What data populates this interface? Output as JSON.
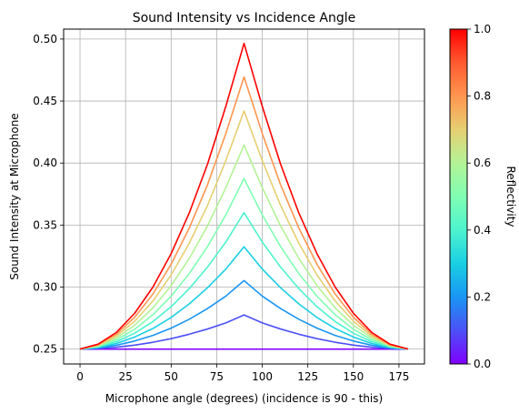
{
  "chart_data": {
    "type": "line",
    "title": "Sound Intensity vs Incidence Angle",
    "xlabel": "Microphone angle (degrees) (incidence is 90 - this)",
    "ylabel": "Sound Intensity at Microphone",
    "xlim": [
      -9,
      189
    ],
    "ylim": [
      0.238,
      0.508
    ],
    "x_ticks": [
      0,
      25,
      50,
      75,
      100,
      125,
      150,
      175
    ],
    "y_ticks": [
      0.25,
      0.3,
      0.35,
      0.4,
      0.45,
      0.5
    ],
    "y_tick_labels": [
      "0.25",
      "0.30",
      "0.35",
      "0.40",
      "0.45",
      "0.50"
    ],
    "grid": true,
    "x": [
      0,
      10,
      20,
      30,
      40,
      50,
      60,
      70,
      80,
      90,
      100,
      110,
      120,
      130,
      140,
      150,
      160,
      170,
      180
    ],
    "series": [
      {
        "reflectivity": 0.0,
        "color": "#8000ff",
        "values": [
          0.25,
          0.25,
          0.25,
          0.25,
          0.25,
          0.25,
          0.25,
          0.25,
          0.25,
          0.25,
          0.25,
          0.25,
          0.25,
          0.25,
          0.25,
          0.25,
          0.25,
          0.25,
          0.25
        ]
      },
      {
        "reflectivity": 0.111,
        "color": "#4c50f6",
        "values": [
          0.25,
          0.2505,
          0.2515,
          0.2532,
          0.2555,
          0.2584,
          0.262,
          0.2662,
          0.2711,
          0.2775,
          0.2711,
          0.2662,
          0.262,
          0.2584,
          0.2555,
          0.2532,
          0.2515,
          0.2505,
          0.25
        ]
      },
      {
        "reflectivity": 0.222,
        "color": "#1996f3",
        "values": [
          0.25,
          0.2509,
          0.2531,
          0.2565,
          0.261,
          0.2669,
          0.2741,
          0.2827,
          0.2927,
          0.3052,
          0.2927,
          0.2827,
          0.2741,
          0.2669,
          0.261,
          0.2565,
          0.2531,
          0.2509,
          0.25
        ]
      },
      {
        "reflectivity": 0.333,
        "color": "#1acfe3",
        "values": [
          0.25,
          0.2513,
          0.2545,
          0.2597,
          0.2666,
          0.2755,
          0.2865,
          0.2995,
          0.3145,
          0.3325,
          0.3145,
          0.2995,
          0.2865,
          0.2755,
          0.2666,
          0.2597,
          0.2545,
          0.2513,
          0.25
        ]
      },
      {
        "reflectivity": 0.444,
        "color": "#4df3ce",
        "values": [
          0.25,
          0.2518,
          0.256,
          0.2628,
          0.2722,
          0.2842,
          0.2988,
          0.3162,
          0.3363,
          0.36,
          0.3363,
          0.3162,
          0.2988,
          0.2842,
          0.2722,
          0.2628,
          0.256,
          0.2518,
          0.25
        ]
      },
      {
        "reflectivity": 0.556,
        "color": "#80feb3",
        "values": [
          0.25,
          0.2522,
          0.2575,
          0.266,
          0.2777,
          0.2927,
          0.311,
          0.3328,
          0.3582,
          0.3875,
          0.3582,
          0.3328,
          0.311,
          0.2927,
          0.2777,
          0.266,
          0.2575,
          0.2522,
          0.25
        ]
      },
      {
        "reflectivity": 0.667,
        "color": "#b3f396",
        "values": [
          0.25,
          0.2527,
          0.259,
          0.2692,
          0.2832,
          0.3012,
          0.3232,
          0.3495,
          0.3801,
          0.4145,
          0.3801,
          0.3495,
          0.3232,
          0.3012,
          0.2832,
          0.2692,
          0.259,
          0.2527,
          0.25
        ]
      },
      {
        "reflectivity": 0.778,
        "color": "#e6cf72",
        "values": [
          0.25,
          0.2531,
          0.2605,
          0.2725,
          0.2888,
          0.3098,
          0.3355,
          0.366,
          0.402,
          0.442,
          0.402,
          0.366,
          0.3355,
          0.3098,
          0.2888,
          0.2725,
          0.2605,
          0.2531,
          0.25
        ]
      },
      {
        "reflectivity": 0.889,
        "color": "#ff964f",
        "values": [
          0.25,
          0.2536,
          0.262,
          0.2757,
          0.2944,
          0.3184,
          0.3478,
          0.3827,
          0.4238,
          0.4695,
          0.4238,
          0.3827,
          0.3478,
          0.3184,
          0.2944,
          0.2757,
          0.262,
          0.2536,
          0.25
        ]
      },
      {
        "reflectivity": 1.0,
        "color": "#ff0000",
        "values": [
          0.25,
          0.254,
          0.2635,
          0.2789,
          0.3,
          0.327,
          0.36,
          0.3993,
          0.4457,
          0.4965,
          0.4457,
          0.3993,
          0.36,
          0.327,
          0.3,
          0.2789,
          0.2635,
          0.254,
          0.25
        ]
      }
    ],
    "colorbar": {
      "label": "Reflectivity",
      "range": [
        0.0,
        1.0
      ],
      "ticks": [
        0.0,
        0.2,
        0.4,
        0.6,
        0.8,
        1.0
      ],
      "tick_labels": [
        "0.0",
        "0.2",
        "0.4",
        "0.6",
        "0.8",
        "1.0"
      ],
      "colormap": "rainbow",
      "colormap_stops": [
        "#8000ff",
        "#4c50f6",
        "#1996f3",
        "#1acfe3",
        "#4df3ce",
        "#80feb3",
        "#b3f396",
        "#e6cf72",
        "#ff964f",
        "#ff5a30",
        "#ff0000"
      ]
    }
  }
}
